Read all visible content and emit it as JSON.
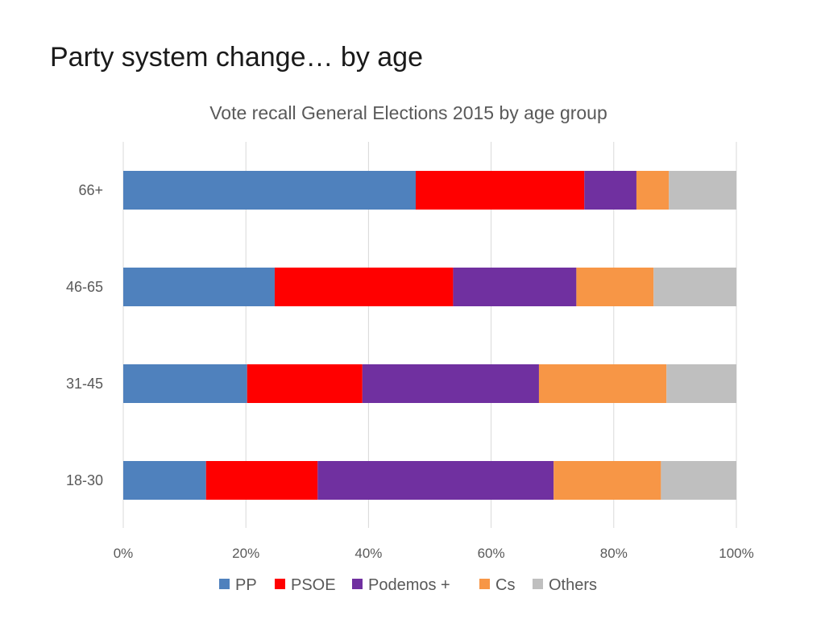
{
  "slide": {
    "title": "Party system change… by age"
  },
  "chart_data": {
    "type": "bar",
    "orientation": "horizontal",
    "stacked": "percent",
    "title": "Vote recall General Elections 2015 by age group",
    "xlabel": "",
    "ylabel": "",
    "xlim": [
      0,
      100
    ],
    "x_ticks": [
      "0%",
      "20%",
      "40%",
      "60%",
      "80%",
      "100%"
    ],
    "grid": true,
    "legend_position": "bottom",
    "categories": [
      "66+",
      "46-65",
      "31-45",
      "18-30"
    ],
    "series": [
      {
        "name": "PP",
        "color": "#4f81bd",
        "values": [
          47.7,
          24.7,
          20.2,
          13.5
        ]
      },
      {
        "name": "PSOE",
        "color": "#ff0000",
        "values": [
          27.5,
          29.1,
          18.8,
          18.2
        ]
      },
      {
        "name": "Podemos +",
        "color": "#7030a0",
        "values": [
          8.5,
          20.1,
          28.8,
          38.5
        ]
      },
      {
        "name": "Cs",
        "color": "#f79646",
        "values": [
          5.3,
          12.6,
          20.8,
          17.5
        ]
      },
      {
        "name": "Others",
        "color": "#bfbfbf",
        "values": [
          11.0,
          13.5,
          11.4,
          12.3
        ]
      }
    ]
  }
}
